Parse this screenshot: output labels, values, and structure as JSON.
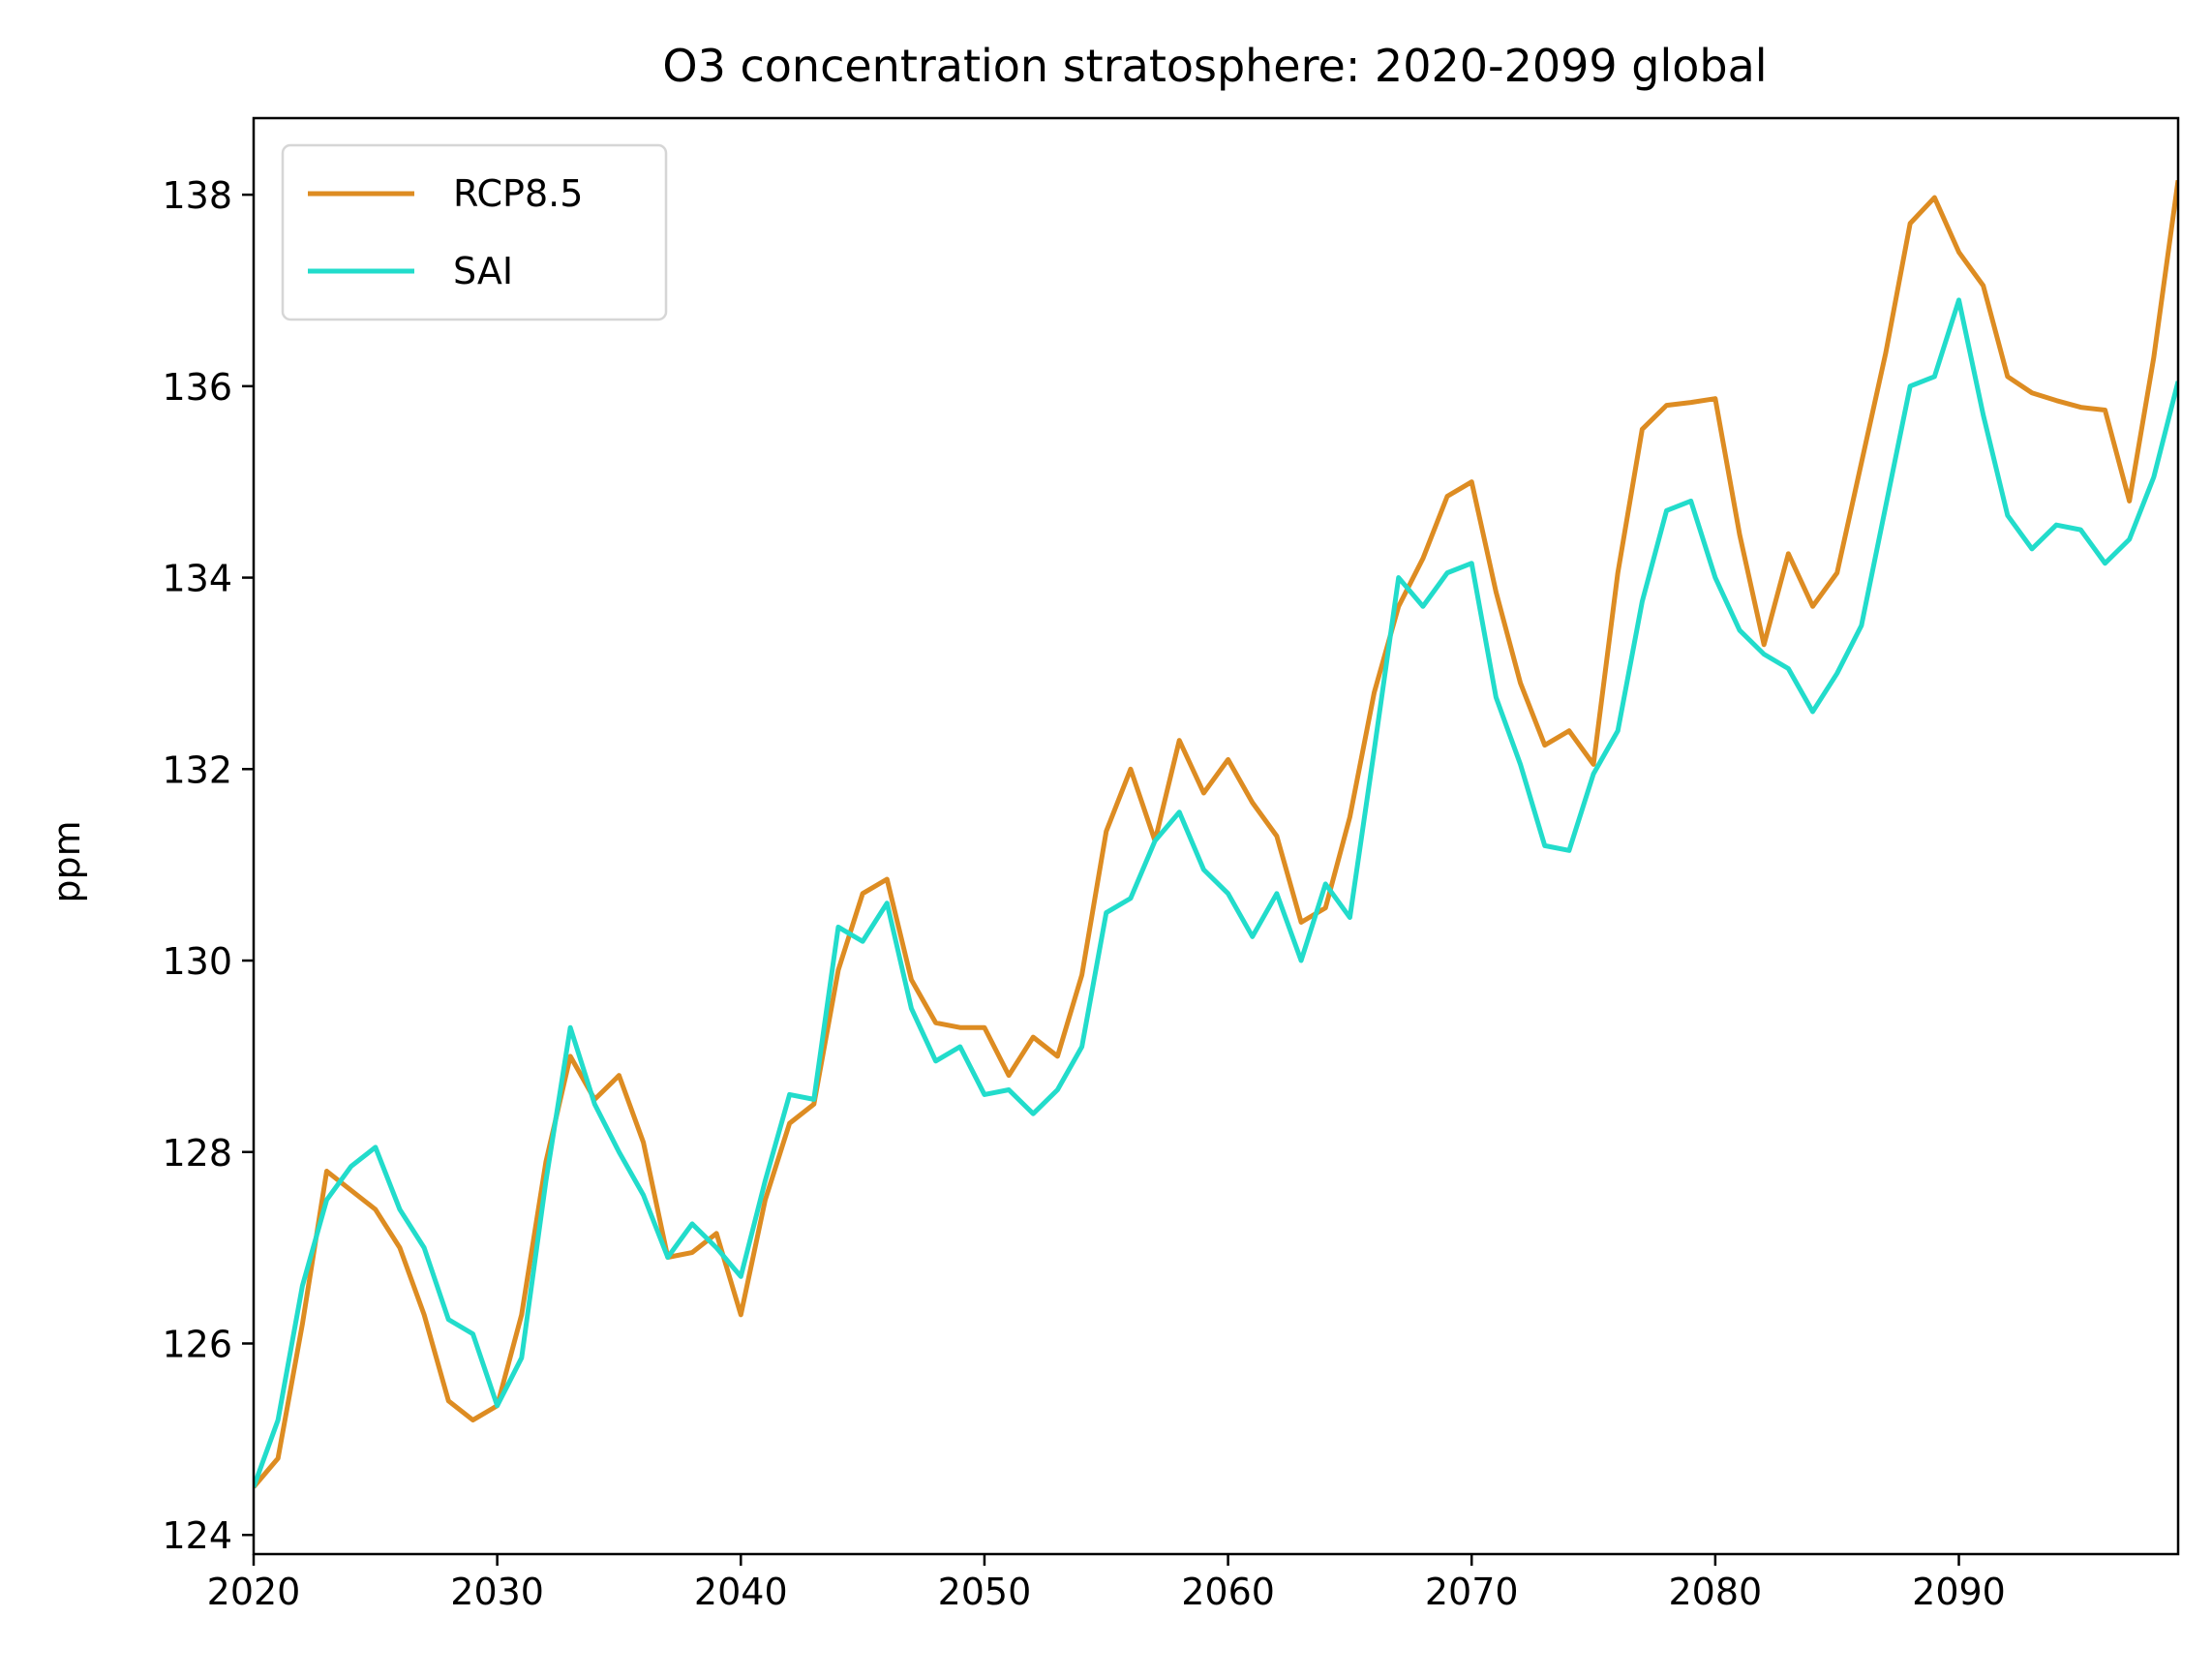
{
  "chart_data": {
    "type": "line",
    "title": "O3 concentration stratosphere: 2020-2099 global",
    "xlabel": "",
    "ylabel": "ppm",
    "xlim": [
      2020,
      2099
    ],
    "ylim": [
      123.8,
      138.8
    ],
    "xticks": [
      2020,
      2030,
      2040,
      2050,
      2060,
      2070,
      2080,
      2090
    ],
    "yticks": [
      124,
      126,
      128,
      130,
      132,
      134,
      136,
      138
    ],
    "grid": false,
    "legend": "upper-left",
    "x": [
      2020,
      2021,
      2022,
      2023,
      2024,
      2025,
      2026,
      2027,
      2028,
      2029,
      2030,
      2031,
      2032,
      2033,
      2034,
      2035,
      2036,
      2037,
      2038,
      2039,
      2040,
      2041,
      2042,
      2043,
      2044,
      2045,
      2046,
      2047,
      2048,
      2049,
      2050,
      2051,
      2052,
      2053,
      2054,
      2055,
      2056,
      2057,
      2058,
      2059,
      2060,
      2061,
      2062,
      2063,
      2064,
      2065,
      2066,
      2067,
      2068,
      2069,
      2070,
      2071,
      2072,
      2073,
      2074,
      2075,
      2076,
      2077,
      2078,
      2079,
      2080,
      2081,
      2082,
      2083,
      2084,
      2085,
      2086,
      2087,
      2088,
      2089,
      2090,
      2091,
      2092,
      2093,
      2094,
      2095,
      2096,
      2097,
      2098,
      2099
    ],
    "series": [
      {
        "name": "RCP8.5",
        "color": "#dd8c22",
        "values": [
          124.5,
          124.8,
          126.2,
          127.8,
          127.6,
          127.4,
          127.0,
          126.3,
          125.4,
          125.2,
          125.35,
          126.3,
          127.9,
          129.0,
          128.55,
          128.8,
          128.1,
          126.9,
          126.95,
          127.15,
          126.3,
          127.5,
          128.3,
          128.5,
          129.9,
          130.7,
          130.85,
          129.8,
          129.35,
          129.3,
          129.3,
          128.8,
          129.2,
          129.0,
          129.85,
          131.35,
          132.0,
          131.25,
          132.3,
          131.75,
          132.1,
          131.65,
          131.3,
          130.4,
          130.55,
          131.5,
          132.8,
          133.7,
          134.2,
          134.85,
          135.0,
          133.85,
          132.9,
          132.25,
          132.4,
          132.05,
          134.05,
          135.55,
          135.8,
          135.83,
          135.87,
          134.45,
          133.3,
          134.25,
          133.7,
          134.05,
          135.2,
          136.35,
          137.7,
          137.97,
          137.4,
          137.05,
          136.1,
          135.93,
          135.85,
          135.78,
          135.75,
          134.8,
          136.3,
          138.15
        ]
      },
      {
        "name": "SAI",
        "color": "#22dccb",
        "values": [
          124.5,
          125.2,
          126.6,
          127.5,
          127.85,
          128.05,
          127.4,
          127.0,
          126.25,
          126.1,
          125.35,
          125.85,
          127.7,
          129.3,
          128.5,
          128.0,
          127.55,
          126.9,
          127.25,
          127.0,
          126.7,
          127.7,
          128.6,
          128.55,
          130.35,
          130.2,
          130.6,
          129.5,
          128.95,
          129.1,
          128.6,
          128.65,
          128.4,
          128.65,
          129.1,
          130.5,
          130.65,
          131.25,
          131.55,
          130.95,
          130.7,
          130.25,
          130.7,
          130.0,
          130.8,
          130.45,
          132.2,
          134.0,
          133.7,
          134.05,
          134.15,
          132.75,
          132.05,
          131.2,
          131.15,
          131.95,
          132.4,
          133.75,
          134.7,
          134.8,
          134.0,
          133.45,
          133.2,
          133.05,
          132.6,
          133.0,
          133.5,
          134.75,
          136.0,
          136.1,
          136.9,
          135.7,
          134.65,
          134.3,
          134.55,
          134.5,
          134.15,
          134.4,
          135.05,
          136.05
        ]
      }
    ]
  }
}
